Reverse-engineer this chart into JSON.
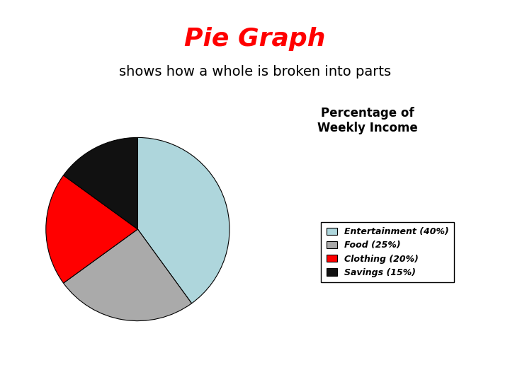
{
  "title": "Pie Graph",
  "subtitle": "shows how a whole is broken into parts",
  "title_color": "#ff0000",
  "title_fontsize": 26,
  "subtitle_fontsize": 14,
  "subtitle_color": "#000000",
  "legend_title": "Percentage of\nWeekly Income",
  "slices": [
    40,
    25,
    20,
    15
  ],
  "labels": [
    "Entertainment (40%)",
    "Food (25%)",
    "Clothing (20%)",
    "Savings (15%)"
  ],
  "colors": [
    "#aed6dc",
    "#aaaaaa",
    "#ff0000",
    "#111111"
  ],
  "startangle": 90,
  "background_color": "#ffffff"
}
